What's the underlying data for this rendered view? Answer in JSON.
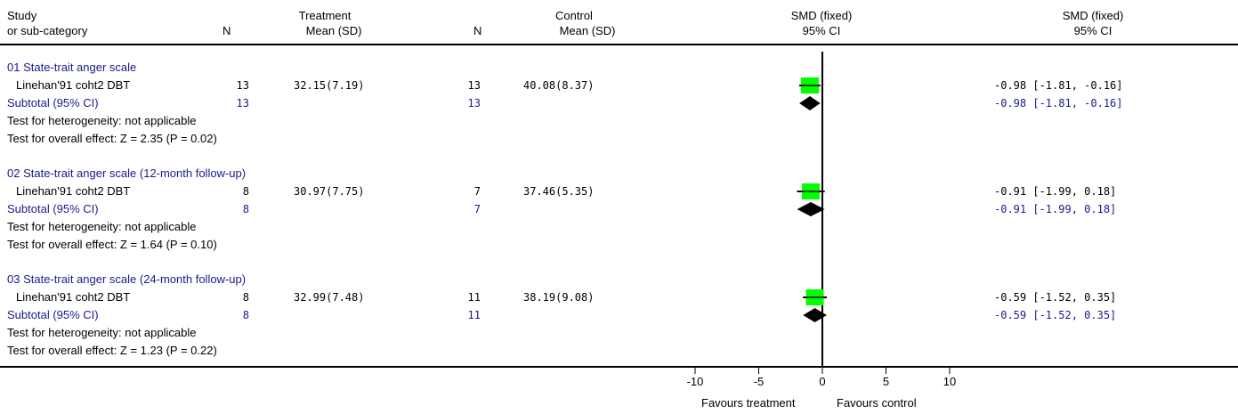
{
  "header": {
    "study_line1": "Study",
    "study_line2": "or sub-category",
    "n_label": "N",
    "treatment_line1": "Treatment",
    "treatment_line2": "Mean (SD)",
    "control_n_label": "N",
    "control_line1": "Control",
    "control_line2": "Mean (SD)",
    "smd_plot_line1": "SMD (fixed)",
    "smd_plot_line2": "95% CI",
    "smd_text_line1": "SMD (fixed)",
    "smd_text_line2": "95% CI"
  },
  "groups": [
    {
      "title": "01 State-trait anger scale",
      "study": {
        "name": "Linehan'91 coht2 DBT",
        "n_t": "13",
        "mean_t": "32.15(7.19)",
        "n_c": "13",
        "mean_c": "40.08(8.37)",
        "ci_text": "-0.98 [-1.81, -0.16]"
      },
      "subtotal": {
        "label": "Subtotal (95% CI)",
        "n_t": "13",
        "n_c": "13",
        "ci_text": "-0.98 [-1.81, -0.16]"
      },
      "heterogeneity": "Test for heterogeneity: not applicable",
      "overall": "Test for overall effect: Z = 2.35 (P = 0.02)"
    },
    {
      "title": "02 State-trait anger scale (12-month follow-up)",
      "study": {
        "name": "Linehan'91 coht2 DBT",
        "n_t": "8",
        "mean_t": "30.97(7.75)",
        "n_c": "7",
        "mean_c": "37.46(5.35)",
        "ci_text": "-0.91 [-1.99, 0.18]"
      },
      "subtotal": {
        "label": "Subtotal (95% CI)",
        "n_t": "8",
        "n_c": "7",
        "ci_text": "-0.91 [-1.99, 0.18]"
      },
      "heterogeneity": "Test for heterogeneity: not applicable",
      "overall": "Test for overall effect: Z = 1.64 (P = 0.10)"
    },
    {
      "title": "03 State-trait anger scale (24-month follow-up)",
      "study": {
        "name": "Linehan'91 coht2 DBT",
        "n_t": "8",
        "mean_t": "32.99(7.48)",
        "n_c": "11",
        "mean_c": "38.19(9.08)",
        "ci_text": "-0.59 [-1.52, 0.35]"
      },
      "subtotal": {
        "label": "Subtotal (95% CI)",
        "n_t": "8",
        "n_c": "11",
        "ci_text": "-0.59 [-1.52, 0.35]"
      },
      "heterogeneity": "Test for heterogeneity: not applicable",
      "overall": "Test for overall effect: Z = 1.23 (P = 0.22)"
    }
  ],
  "footer": {
    "favours_left": "Favours treatment",
    "favours_right": "Favours control"
  },
  "colors": {
    "marker": "#00ff00",
    "subtotal_text": "#1a1a8c",
    "title_text": "#1a1a8c"
  },
  "chart_data": {
    "type": "forest",
    "xlim": [
      -10,
      10
    ],
    "ticks": [
      -10,
      -5,
      0,
      5,
      10
    ],
    "tick_labels": [
      "-10",
      "-5",
      "0",
      "5",
      "10"
    ],
    "rows": [
      {
        "kind": "study",
        "est": -0.98,
        "lo": -1.81,
        "hi": -0.16
      },
      {
        "kind": "subtotal",
        "est": -0.98,
        "lo": -1.81,
        "hi": -0.16
      },
      {
        "kind": "study",
        "est": -0.91,
        "lo": -1.99,
        "hi": 0.18
      },
      {
        "kind": "subtotal",
        "est": -0.91,
        "lo": -1.99,
        "hi": 0.18
      },
      {
        "kind": "study",
        "est": -0.59,
        "lo": -1.52,
        "hi": 0.35
      },
      {
        "kind": "subtotal",
        "est": -0.59,
        "lo": -1.52,
        "hi": 0.35
      }
    ]
  }
}
